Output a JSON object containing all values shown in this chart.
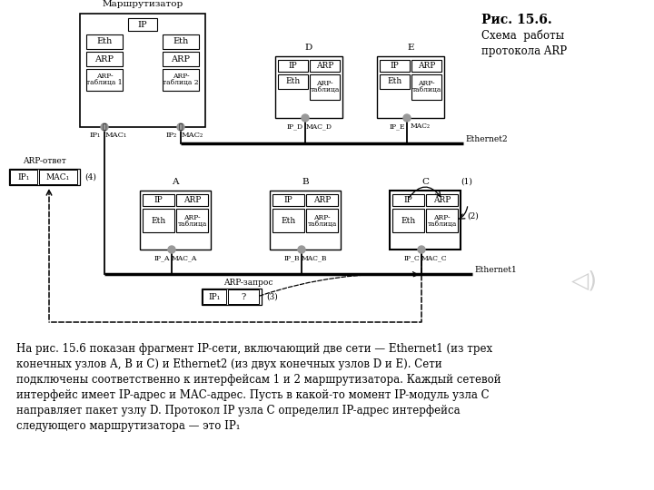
{
  "bg_color": "#ffffff",
  "text_color": "#000000",
  "title_bold": "Рис. 15.6.",
  "subtitle1": "Схема  работы",
  "subtitle2": "протокола ARP",
  "body_text_lines": [
    "На рис. 15.6 показан фрагмент IP-сети, включающий две сети — Ethernet1 (из трех",
    "конечных узлов А, В и С) и Ethernet2 (из двух конечных узлов D и E). Сети",
    "подключены соответственно к интерфейсам 1 и 2 маршрутизатора. Каждый сетевой",
    "интерфейс имеет IP-адрес и МАС-адрес. Пусть в какой-то момент IP-модуль узла C",
    "направляет пакет узлу D. Протокол IP узла С определил IP-адрес интерфейса",
    "следующего маршрутизатора — это IP₁"
  ],
  "router_label": "Маршрутизатор",
  "ethernet1_label": "Ethernet1",
  "ethernet2_label": "Ethernet2",
  "arp_answer_label": "ARP-ответ",
  "arp_request_label": "ARP-запрос",
  "node_labels": [
    "A",
    "B",
    "C",
    "D",
    "E"
  ],
  "router_if1_labels": [
    "IP₁",
    "MAC₁"
  ],
  "router_if2_labels": [
    "IP₂",
    "MAC₂"
  ]
}
